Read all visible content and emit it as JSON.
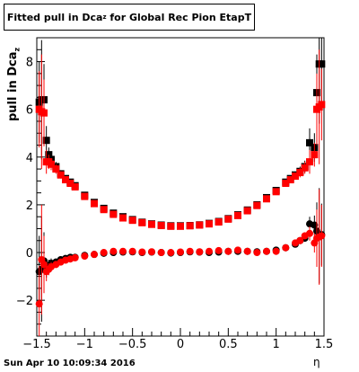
{
  "title": {
    "main": "Fitted pull in Dca",
    "sub": "z",
    "rest": " for Global Rec Pion EtapT"
  },
  "ylabel": {
    "main": "pull in Dca",
    "sub": "z"
  },
  "xlabel": "η",
  "footer": "Sun Apr 10 10:09:34 2016",
  "colors": {
    "series_black": "#000000",
    "series_red": "#ff0000",
    "axis": "#000000"
  },
  "chart_data": {
    "type": "scatter",
    "xlim": [
      -1.5,
      1.5
    ],
    "ylim": [
      -3.5,
      9.0
    ],
    "xticks": [
      -1.5,
      -1,
      -0.5,
      0,
      0.5,
      1,
      1.5
    ],
    "xtick_labels": [
      "−1.5",
      "−1",
      "−0.5",
      "0",
      "0.5",
      "1",
      "1.5"
    ],
    "yticks": [
      -2,
      0,
      2,
      4,
      6,
      8
    ],
    "ytick_labels": [
      "−2",
      "0",
      "2",
      "4",
      "6",
      "8"
    ],
    "legend": "none",
    "series": [
      {
        "marker": "square",
        "color": "#000000",
        "role": "width",
        "x": [
          -1.475,
          -1.45,
          -1.425,
          -1.4,
          -1.375,
          -1.35,
          -1.3,
          -1.25,
          -1.2,
          -1.15,
          -1.1,
          -1.0,
          -0.9,
          -0.8,
          -0.7,
          -0.6,
          -0.5,
          -0.4,
          -0.3,
          -0.2,
          -0.1,
          0.0,
          0.1,
          0.2,
          0.3,
          0.4,
          0.5,
          0.6,
          0.7,
          0.8,
          0.9,
          1.0,
          1.1,
          1.15,
          1.2,
          1.25,
          1.3,
          1.35,
          1.4,
          1.425,
          1.45,
          1.475
        ],
        "y": [
          6.3,
          6.4,
          6.4,
          4.7,
          4.1,
          3.9,
          3.6,
          3.3,
          3.1,
          2.95,
          2.8,
          2.4,
          2.1,
          1.85,
          1.65,
          1.5,
          1.38,
          1.27,
          1.2,
          1.15,
          1.12,
          1.12,
          1.13,
          1.16,
          1.22,
          1.3,
          1.42,
          1.58,
          1.78,
          2.0,
          2.3,
          2.6,
          2.95,
          3.1,
          3.25,
          3.4,
          3.6,
          4.6,
          4.4,
          6.7,
          7.9,
          7.9
        ],
        "yerr": [
          1.7,
          2.5,
          1.5,
          0.6,
          0.3,
          0.25,
          0.2,
          0.15,
          0.12,
          0.1,
          0.08,
          0.05,
          0.05,
          0.05,
          0.05,
          0.05,
          0.05,
          0.05,
          0.05,
          0.05,
          0.05,
          0.05,
          0.05,
          0.05,
          0.05,
          0.05,
          0.05,
          0.05,
          0.05,
          0.05,
          0.06,
          0.08,
          0.1,
          0.12,
          0.15,
          0.2,
          0.25,
          0.6,
          0.6,
          1.6,
          2.5,
          1.6
        ]
      },
      {
        "marker": "square",
        "color": "#ff0000",
        "role": "width",
        "x": [
          -1.475,
          -1.45,
          -1.425,
          -1.4,
          -1.375,
          -1.35,
          -1.3,
          -1.25,
          -1.2,
          -1.15,
          -1.1,
          -1.0,
          -0.9,
          -0.8,
          -0.7,
          -0.6,
          -0.5,
          -0.4,
          -0.3,
          -0.2,
          -0.1,
          0.0,
          0.1,
          0.2,
          0.3,
          0.4,
          0.5,
          0.6,
          0.7,
          0.8,
          0.9,
          1.0,
          1.1,
          1.15,
          1.2,
          1.25,
          1.3,
          1.35,
          1.4,
          1.425,
          1.45,
          1.475
        ],
        "y": [
          6.0,
          5.9,
          5.85,
          3.8,
          3.8,
          3.7,
          3.5,
          3.25,
          3.05,
          2.9,
          2.75,
          2.35,
          2.05,
          1.8,
          1.6,
          1.45,
          1.35,
          1.25,
          1.18,
          1.13,
          1.1,
          1.1,
          1.12,
          1.15,
          1.2,
          1.28,
          1.4,
          1.55,
          1.75,
          1.97,
          2.25,
          2.55,
          2.9,
          3.05,
          3.2,
          3.35,
          3.55,
          3.8,
          4.1,
          6.0,
          6.1,
          6.2
        ],
        "yerr": [
          1.6,
          2.4,
          1.4,
          0.5,
          0.3,
          0.25,
          0.2,
          0.15,
          0.12,
          0.1,
          0.08,
          0.05,
          0.05,
          0.05,
          0.05,
          0.05,
          0.05,
          0.05,
          0.05,
          0.05,
          0.05,
          0.05,
          0.05,
          0.05,
          0.05,
          0.05,
          0.05,
          0.05,
          0.05,
          0.05,
          0.06,
          0.08,
          0.1,
          0.12,
          0.15,
          0.2,
          0.25,
          0.5,
          0.5,
          1.5,
          2.4,
          1.5
        ]
      },
      {
        "marker": "circle",
        "color": "#000000",
        "role": "mean",
        "x": [
          -1.475,
          -1.45,
          -1.425,
          -1.4,
          -1.375,
          -1.35,
          -1.3,
          -1.25,
          -1.2,
          -1.15,
          -1.1,
          -1.0,
          -0.9,
          -0.8,
          -0.7,
          -0.6,
          -0.5,
          -0.4,
          -0.3,
          -0.2,
          -0.1,
          0.0,
          0.1,
          0.2,
          0.3,
          0.4,
          0.5,
          0.6,
          0.7,
          0.8,
          0.9,
          1.0,
          1.1,
          1.2,
          1.25,
          1.3,
          1.35,
          1.4,
          1.425,
          1.45,
          1.475
        ],
        "y": [
          -0.8,
          -0.7,
          -0.35,
          -0.65,
          -0.55,
          -0.45,
          -0.4,
          -0.3,
          -0.25,
          -0.2,
          -0.2,
          -0.12,
          -0.08,
          -0.03,
          0.0,
          0.02,
          0.03,
          0.0,
          0.02,
          0.0,
          -0.02,
          0.0,
          0.03,
          0.02,
          0.0,
          0.02,
          0.05,
          0.05,
          0.05,
          0.03,
          0.05,
          0.1,
          0.2,
          0.35,
          0.5,
          0.6,
          1.2,
          1.15,
          0.9,
          0.7,
          0.75
        ],
        "yerr": [
          1.5,
          2.2,
          1.2,
          0.4,
          0.25,
          0.2,
          0.15,
          0.1,
          0.08,
          0.05,
          0.05,
          0.03,
          0.03,
          0.03,
          0.03,
          0.03,
          0.03,
          0.03,
          0.03,
          0.03,
          0.03,
          0.03,
          0.03,
          0.03,
          0.03,
          0.03,
          0.03,
          0.03,
          0.03,
          0.03,
          0.03,
          0.04,
          0.05,
          0.08,
          0.1,
          0.15,
          0.3,
          0.4,
          1.2,
          2.0,
          1.3
        ]
      },
      {
        "marker": "circle",
        "color": "#ff0000",
        "role": "mean",
        "x": [
          -1.475,
          -1.45,
          -1.425,
          -1.4,
          -1.375,
          -1.35,
          -1.3,
          -1.25,
          -1.2,
          -1.15,
          -1.1,
          -1.0,
          -0.9,
          -0.8,
          -0.7,
          -0.6,
          -0.5,
          -0.4,
          -0.3,
          -0.2,
          -0.1,
          0.0,
          0.1,
          0.2,
          0.3,
          0.4,
          0.5,
          0.6,
          0.7,
          0.8,
          0.9,
          1.0,
          1.1,
          1.2,
          1.25,
          1.3,
          1.35,
          1.4,
          1.425,
          1.45,
          1.475
        ],
        "y": [
          -2.15,
          -0.3,
          -0.5,
          -0.8,
          -0.7,
          -0.6,
          -0.5,
          -0.4,
          -0.32,
          -0.27,
          -0.22,
          -0.15,
          -0.08,
          0.0,
          0.05,
          0.05,
          0.05,
          0.02,
          0.03,
          0.0,
          0.0,
          0.02,
          0.05,
          0.03,
          0.05,
          0.08,
          0.05,
          0.1,
          0.05,
          0.0,
          0.05,
          0.05,
          0.2,
          0.4,
          0.5,
          0.7,
          0.8,
          0.4,
          0.6,
          0.65,
          0.7
        ],
        "yerr": [
          1.6,
          2.3,
          1.2,
          0.4,
          0.25,
          0.2,
          0.15,
          0.1,
          0.08,
          0.05,
          0.05,
          0.03,
          0.03,
          0.03,
          0.03,
          0.03,
          0.03,
          0.03,
          0.03,
          0.03,
          0.03,
          0.03,
          0.03,
          0.03,
          0.03,
          0.03,
          0.03,
          0.03,
          0.03,
          0.03,
          0.03,
          0.04,
          0.05,
          0.08,
          0.1,
          0.15,
          0.3,
          0.4,
          1.2,
          2.0,
          1.3
        ]
      }
    ]
  }
}
